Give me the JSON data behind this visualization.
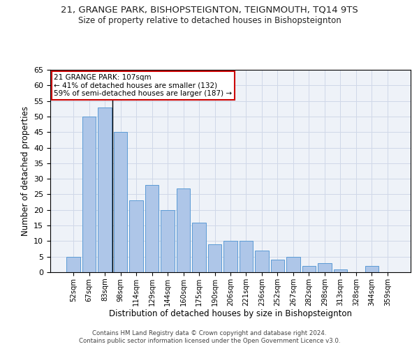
{
  "title1": "21, GRANGE PARK, BISHOPSTEIGNTON, TEIGNMOUTH, TQ14 9TS",
  "title2": "Size of property relative to detached houses in Bishopsteignton",
  "xlabel": "Distribution of detached houses by size in Bishopsteignton",
  "ylabel": "Number of detached properties",
  "categories": [
    "52sqm",
    "67sqm",
    "83sqm",
    "98sqm",
    "114sqm",
    "129sqm",
    "144sqm",
    "160sqm",
    "175sqm",
    "190sqm",
    "206sqm",
    "221sqm",
    "236sqm",
    "252sqm",
    "267sqm",
    "282sqm",
    "298sqm",
    "313sqm",
    "328sqm",
    "344sqm",
    "359sqm"
  ],
  "values": [
    5,
    50,
    53,
    45,
    23,
    28,
    20,
    27,
    16,
    9,
    10,
    10,
    7,
    4,
    5,
    2,
    3,
    1,
    0,
    2,
    0
  ],
  "bar_color": "#aec6e8",
  "bar_edge_color": "#5b9bd5",
  "annotation_line1": "21 GRANGE PARK: 107sqm",
  "annotation_line2": "← 41% of detached houses are smaller (132)",
  "annotation_line3": "59% of semi-detached houses are larger (187) →",
  "annotation_box_color": "#ffffff",
  "annotation_box_edge_color": "#cc0000",
  "vline_x": 2.5,
  "ylim": [
    0,
    65
  ],
  "yticks": [
    0,
    5,
    10,
    15,
    20,
    25,
    30,
    35,
    40,
    45,
    50,
    55,
    60,
    65
  ],
  "grid_color": "#d0d8e8",
  "bg_color": "#eef2f8",
  "footer1": "Contains HM Land Registry data © Crown copyright and database right 2024.",
  "footer2": "Contains public sector information licensed under the Open Government Licence v3.0."
}
